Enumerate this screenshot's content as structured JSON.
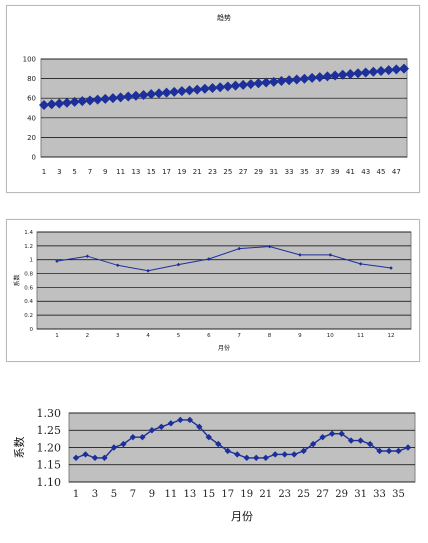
{
  "chart_data": [
    {
      "type": "line",
      "title": "趋势",
      "xlabel": "",
      "ylabel": "",
      "ylim": [
        0,
        100
      ],
      "yticks": [
        0,
        20,
        40,
        60,
        80,
        100
      ],
      "xticks": [
        1,
        3,
        5,
        7,
        9,
        11,
        13,
        15,
        17,
        19,
        21,
        23,
        25,
        27,
        29,
        31,
        33,
        35,
        37,
        39,
        41,
        43,
        45,
        47
      ],
      "x": [
        1,
        2,
        3,
        4,
        5,
        6,
        7,
        8,
        9,
        10,
        11,
        12,
        13,
        14,
        15,
        16,
        17,
        18,
        19,
        20,
        21,
        22,
        23,
        24,
        25,
        26,
        27,
        28,
        29,
        30,
        31,
        32,
        33,
        34,
        35,
        36,
        37,
        38,
        39,
        40,
        41,
        42,
        43,
        44,
        45,
        46,
        47,
        48
      ],
      "series": [
        {
          "values": [
            53.0,
            53.8,
            54.6,
            55.4,
            56.2,
            57.0,
            57.7,
            58.5,
            59.3,
            60.1,
            60.9,
            61.7,
            62.5,
            63.3,
            64.1,
            64.9,
            65.7,
            66.5,
            67.2,
            68.0,
            68.8,
            69.6,
            70.4,
            71.2,
            72.0,
            72.8,
            73.6,
            74.4,
            75.2,
            76.0,
            76.7,
            77.5,
            78.3,
            79.1,
            79.9,
            80.7,
            81.5,
            82.3,
            83.1,
            83.9,
            84.7,
            85.5,
            86.2,
            87.0,
            87.8,
            88.6,
            89.4,
            90.2
          ],
          "color": "#1c2f9a"
        }
      ],
      "plot_bg": "#c0c0c0",
      "grid": true
    },
    {
      "type": "line",
      "title": "",
      "xlabel": "月份",
      "ylabel": "系数",
      "ylim": [
        0,
        1.4
      ],
      "yticks": [
        0,
        0.2,
        0.4,
        0.6,
        0.8,
        1,
        1.2,
        1.4
      ],
      "ytick_labels": [
        "0",
        "0.2",
        "0.4",
        "0.6",
        "0.8",
        "1",
        "1.2",
        "1.4"
      ],
      "xticks": [
        1,
        2,
        3,
        4,
        5,
        6,
        7,
        8,
        9,
        10,
        11,
        12
      ],
      "x": [
        1,
        2,
        3,
        4,
        5,
        6,
        7,
        8,
        9,
        10,
        11,
        12
      ],
      "series": [
        {
          "values": [
            0.98,
            1.05,
            0.92,
            0.84,
            0.93,
            1.01,
            1.16,
            1.19,
            1.07,
            1.07,
            0.94,
            0.88
          ],
          "color": "#1c2f9a"
        }
      ],
      "plot_bg": "#c0c0c0",
      "grid": true
    },
    {
      "type": "line",
      "title": "",
      "xlabel": "月份",
      "ylabel": "系数",
      "ylim": [
        1.1,
        1.3
      ],
      "yticks": [
        1.1,
        1.15,
        1.2,
        1.25,
        1.3
      ],
      "ytick_labels": [
        "1.10",
        "1.15",
        "1.20",
        "1.25",
        "1.30"
      ],
      "xticks": [
        1,
        3,
        5,
        7,
        9,
        11,
        13,
        15,
        17,
        19,
        21,
        23,
        25,
        27,
        29,
        31,
        33,
        35
      ],
      "x": [
        1,
        2,
        3,
        4,
        5,
        6,
        7,
        8,
        9,
        10,
        11,
        12,
        13,
        14,
        15,
        16,
        17,
        18,
        19,
        20,
        21,
        22,
        23,
        24,
        25,
        26,
        27,
        28,
        29,
        30,
        31,
        32,
        33,
        34,
        35,
        36
      ],
      "series": [
        {
          "values": [
            1.17,
            1.18,
            1.17,
            1.17,
            1.2,
            1.21,
            1.23,
            1.23,
            1.25,
            1.26,
            1.27,
            1.28,
            1.28,
            1.26,
            1.23,
            1.21,
            1.19,
            1.18,
            1.17,
            1.17,
            1.17,
            1.18,
            1.18,
            1.18,
            1.19,
            1.21,
            1.23,
            1.24,
            1.24,
            1.22,
            1.22,
            1.21,
            1.19,
            1.19,
            1.19,
            1.2
          ],
          "color": "#1c2f9a"
        }
      ],
      "plot_bg": "#c0c0c0",
      "grid": true
    }
  ]
}
